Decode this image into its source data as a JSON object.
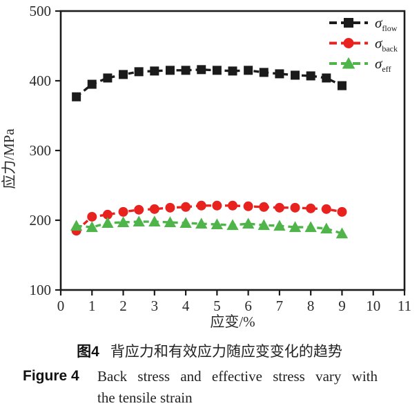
{
  "figure": {
    "caption_cn_label": "图4",
    "caption_cn_text": "背应力和有效应力随应变变化的趋势",
    "caption_en_label": "Figure 4",
    "caption_en_text": "Back stress and effective stress vary with",
    "caption_en_text2": "the tensile strain"
  },
  "colors": {
    "axis": "#1b1b1b",
    "flow": "#1b1b1b",
    "back": "#e8221f",
    "eff": "#4fb54a",
    "text": "#2a2a2a"
  },
  "chart_data": {
    "type": "line",
    "title": "",
    "xlabel": "应变/%",
    "ylabel": "应力/MPa",
    "xlim": [
      0,
      11
    ],
    "ylim": [
      100,
      500
    ],
    "xticks": [
      0,
      1,
      2,
      3,
      4,
      5,
      6,
      7,
      8,
      9,
      10,
      11
    ],
    "yticks": [
      100,
      200,
      300,
      400,
      500
    ],
    "grid": false,
    "line_style": "dashed",
    "legend_position": "top-right-inside",
    "x": [
      0.5,
      1,
      1.5,
      2,
      2.5,
      3,
      3.5,
      4,
      4.5,
      5,
      5.5,
      6,
      6.5,
      7,
      7.5,
      8,
      8.5,
      9
    ],
    "series": [
      {
        "name": "sigma_flow",
        "label_main": "σ",
        "label_sub": "flow",
        "marker": "square",
        "color": "#1b1b1b",
        "values": [
          377,
          395,
          404,
          409,
          413,
          414,
          415,
          415,
          416,
          415,
          414,
          415,
          412,
          410,
          408,
          407,
          404,
          393
        ]
      },
      {
        "name": "sigma_back",
        "label_main": "σ",
        "label_sub": "back",
        "marker": "circle",
        "color": "#e8221f",
        "values": [
          185,
          205,
          208,
          212,
          215,
          216,
          218,
          219,
          221,
          221,
          221,
          220,
          219,
          218,
          218,
          217,
          216,
          212
        ]
      },
      {
        "name": "sigma_eff",
        "label_main": "σ",
        "label_sub": "eff",
        "marker": "triangle",
        "color": "#4fb54a",
        "values": [
          192,
          190,
          196,
          197,
          198,
          198,
          197,
          196,
          195,
          194,
          193,
          195,
          193,
          192,
          190,
          190,
          188,
          181
        ]
      }
    ]
  }
}
